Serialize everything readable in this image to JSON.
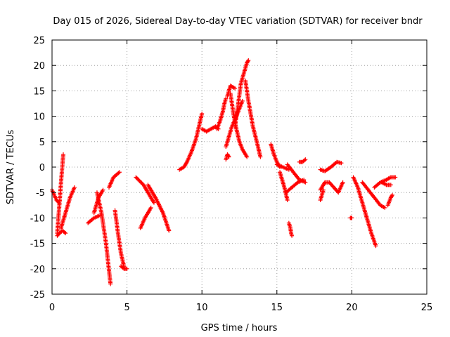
{
  "chart_data": {
    "type": "scatter",
    "title": "Day 015 of 2026, Sidereal Day-to-day VTEC variation (SDTVAR) for receiver bndr",
    "xlabel": "GPS time / hours",
    "ylabel": "SDTVAR / TECUs",
    "xlim": [
      0,
      25
    ],
    "ylim": [
      -25,
      25
    ],
    "xticks": [
      0,
      5,
      10,
      15,
      20,
      25
    ],
    "yticks": [
      -25,
      -20,
      -15,
      -10,
      -5,
      0,
      5,
      10,
      15,
      20,
      25
    ],
    "xtick_labels": [
      "0",
      "5",
      "10",
      "15",
      "20",
      "25"
    ],
    "ytick_labels": [
      "-25",
      "-20",
      "-15",
      "-10",
      "-5",
      "0",
      "5",
      "10",
      "15",
      "20",
      "25"
    ],
    "grid": true,
    "marker": "+",
    "color": "#ff0000",
    "series": [
      {
        "name": "s1",
        "x": [
          0.0,
          0.15,
          0.3,
          0.45
        ],
        "y": [
          -4.5,
          -5.5,
          -6.5,
          -7.0
        ]
      },
      {
        "name": "s2",
        "x": [
          0.35,
          0.45,
          0.6,
          0.75
        ],
        "y": [
          -13.0,
          -9.0,
          -3.0,
          2.5
        ]
      },
      {
        "name": "s3",
        "x": [
          0.35,
          0.5,
          0.7,
          0.9
        ],
        "y": [
          -13.5,
          -13.0,
          -12.5,
          -13.0
        ]
      },
      {
        "name": "s4",
        "x": [
          0.6,
          0.9,
          1.2,
          1.5
        ],
        "y": [
          -12.0,
          -9.0,
          -6.0,
          -4.0
        ]
      },
      {
        "name": "s5",
        "x": [
          2.4,
          2.8,
          3.2
        ],
        "y": [
          -11.0,
          -10.0,
          -9.5
        ]
      },
      {
        "name": "s6",
        "x": [
          2.8,
          3.1,
          3.4
        ],
        "y": [
          -9.0,
          -6.0,
          -4.5
        ]
      },
      {
        "name": "s7",
        "x": [
          3.0,
          3.3,
          3.6,
          3.9
        ],
        "y": [
          -5.0,
          -9.0,
          -15.0,
          -23.0
        ]
      },
      {
        "name": "s8",
        "x": [
          3.8,
          4.1,
          4.5
        ],
        "y": [
          -4.0,
          -2.0,
          -1.0
        ]
      },
      {
        "name": "s9",
        "x": [
          4.2,
          4.4,
          4.6,
          4.8
        ],
        "y": [
          -8.5,
          -13.0,
          -17.0,
          -19.5
        ]
      },
      {
        "name": "s10",
        "x": [
          4.6,
          4.8,
          5.0
        ],
        "y": [
          -19.5,
          -20.0,
          -20.0
        ]
      },
      {
        "name": "s11",
        "x": [
          5.9,
          6.2,
          6.6
        ],
        "y": [
          -12.0,
          -10.0,
          -8.0
        ]
      },
      {
        "name": "s12",
        "x": [
          5.6,
          6.1,
          6.5,
          6.8
        ],
        "y": [
          -2.0,
          -3.5,
          -5.5,
          -7.0
        ]
      },
      {
        "name": "s13",
        "x": [
          6.4,
          6.9,
          7.4,
          7.8
        ],
        "y": [
          -3.5,
          -6.0,
          -9.0,
          -12.5
        ]
      },
      {
        "name": "s14",
        "x": [
          8.5,
          8.8,
          9.0,
          9.3,
          9.6,
          9.8,
          10.0
        ],
        "y": [
          -0.5,
          0.0,
          1.0,
          3.0,
          5.5,
          8.0,
          10.5
        ]
      },
      {
        "name": "s15",
        "x": [
          10.0,
          10.3,
          10.6,
          10.9,
          11.1
        ],
        "y": [
          7.5,
          7.0,
          7.5,
          8.0,
          7.5
        ]
      },
      {
        "name": "s16",
        "x": [
          11.0,
          11.2,
          11.4,
          11.5,
          11.6
        ],
        "y": [
          7.5,
          9.0,
          11.0,
          12.5,
          13.5
        ]
      },
      {
        "name": "s17",
        "x": [
          11.6,
          11.8,
          12.0,
          12.3,
          12.5,
          12.7
        ],
        "y": [
          4.0,
          6.0,
          8.0,
          10.0,
          11.5,
          13.0
        ]
      },
      {
        "name": "s18",
        "x": [
          11.6,
          11.7,
          11.8
        ],
        "y": [
          1.5,
          2.5,
          2.0
        ]
      },
      {
        "name": "s19",
        "x": [
          11.7,
          11.9,
          12.2
        ],
        "y": [
          14.0,
          16.0,
          15.5
        ]
      },
      {
        "name": "s20",
        "x": [
          11.9,
          12.1,
          12.3,
          12.5,
          12.7,
          13.0
        ],
        "y": [
          14.5,
          10.5,
          7.5,
          5.0,
          3.5,
          2.0
        ]
      },
      {
        "name": "s21",
        "x": [
          12.2,
          12.4,
          12.6,
          12.8,
          13.0,
          13.1
        ],
        "y": [
          8.0,
          12.0,
          16.5,
          18.5,
          20.5,
          21.0
        ]
      },
      {
        "name": "s22",
        "x": [
          12.9,
          13.1,
          13.4,
          13.7,
          13.9
        ],
        "y": [
          17.0,
          13.0,
          8.0,
          4.5,
          2.0
        ]
      },
      {
        "name": "s23",
        "x": [
          14.6,
          14.8,
          15.0,
          15.2
        ],
        "y": [
          4.5,
          2.5,
          1.0,
          0.0
        ]
      },
      {
        "name": "s24",
        "x": [
          15.2,
          15.5,
          15.7
        ],
        "y": [
          -1.0,
          -4.0,
          -6.5
        ]
      },
      {
        "name": "s25",
        "x": [
          15.0,
          15.4,
          15.8
        ],
        "y": [
          0.5,
          0.0,
          -0.5
        ]
      },
      {
        "name": "s26",
        "x": [
          15.6,
          16.0,
          16.4,
          16.8
        ],
        "y": [
          -5.0,
          -4.0,
          -3.0,
          -2.5
        ]
      },
      {
        "name": "s27",
        "x": [
          15.7,
          16.1,
          16.5,
          16.9
        ],
        "y": [
          0.5,
          -1.0,
          -2.5,
          -3.0
        ]
      },
      {
        "name": "s28",
        "x": [
          16.5,
          16.7,
          16.9
        ],
        "y": [
          1.0,
          1.0,
          1.5
        ]
      },
      {
        "name": "s29",
        "x": [
          15.8,
          15.9,
          15.95,
          16.0
        ],
        "y": [
          -11.0,
          -12.0,
          -13.0,
          -13.5
        ]
      },
      {
        "name": "s30",
        "x": [
          17.9,
          18.2,
          18.6,
          19.0,
          19.3
        ],
        "y": [
          -0.5,
          -0.8,
          0.0,
          1.0,
          0.8
        ]
      },
      {
        "name": "s31",
        "x": [
          17.9,
          18.2,
          18.5,
          18.8,
          19.1,
          19.4
        ],
        "y": [
          -4.5,
          -3.0,
          -3.0,
          -4.0,
          -5.0,
          -3.0
        ]
      },
      {
        "name": "s32",
        "x": [
          17.9,
          18.0,
          18.1
        ],
        "y": [
          -6.5,
          -5.5,
          -4.5
        ]
      },
      {
        "name": "s33",
        "x": [
          20.1,
          20.4,
          20.7,
          21.0,
          21.3,
          21.6
        ],
        "y": [
          -2.0,
          -4.0,
          -7.0,
          -10.0,
          -13.0,
          -15.5
        ]
      },
      {
        "name": "s34",
        "x": [
          20.7,
          21.1,
          21.5,
          21.9,
          22.2
        ],
        "y": [
          -3.0,
          -4.5,
          -6.0,
          -7.5,
          -8.0
        ]
      },
      {
        "name": "s35",
        "x": [
          21.5,
          21.9,
          22.3,
          22.6,
          22.9
        ],
        "y": [
          -4.0,
          -3.0,
          -2.5,
          -2.0,
          -2.0
        ]
      },
      {
        "name": "s36",
        "x": [
          22.0,
          22.3,
          22.6
        ],
        "y": [
          -3.0,
          -3.5,
          -3.5
        ]
      },
      {
        "name": "s37",
        "x": [
          22.4,
          22.6,
          22.7
        ],
        "y": [
          -7.5,
          -6.0,
          -5.5
        ]
      },
      {
        "name": "s38",
        "x": [
          19.9,
          20.0
        ],
        "y": [
          -10.0,
          -10.0
        ]
      }
    ]
  }
}
